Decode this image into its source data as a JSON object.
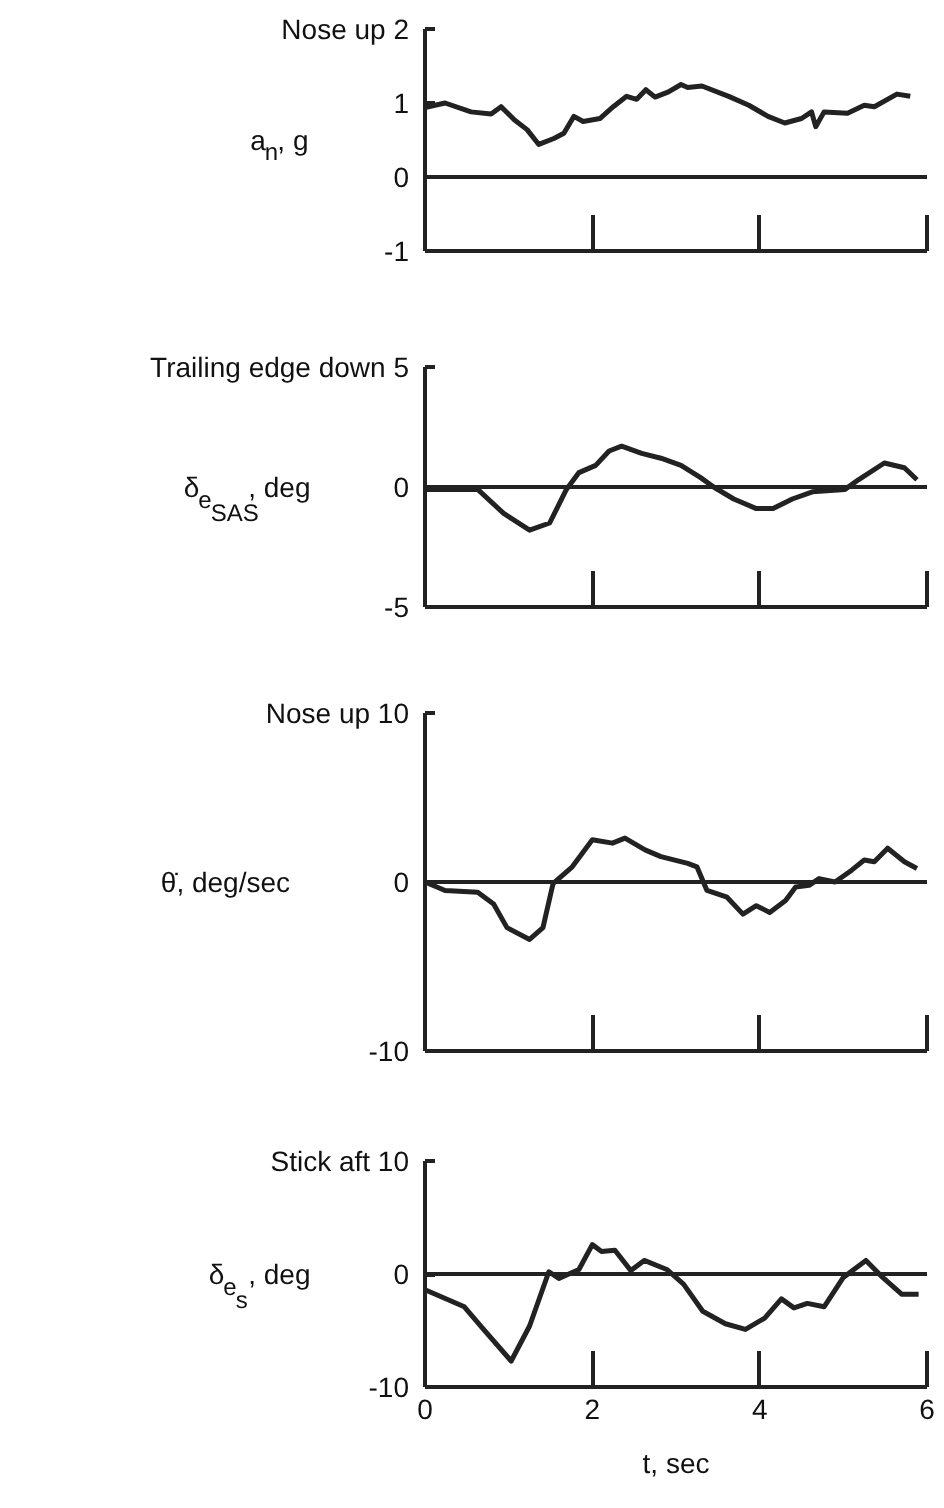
{
  "chart_data": [
    {
      "type": "line",
      "ylabel": "a$_{n}$, g",
      "x": [
        0,
        0.24,
        0.55,
        0.79,
        0.91,
        1.07,
        1.22,
        1.36,
        1.54,
        1.66,
        1.78,
        1.89,
        2.09,
        2.25,
        2.41,
        2.53,
        2.64,
        2.75,
        2.91,
        3.06,
        3.14,
        3.31,
        3.63,
        3.87,
        4.1,
        4.3,
        4.5,
        4.62,
        4.67,
        4.77,
        5.05,
        5.25,
        5.37,
        5.64,
        5.8
      ],
      "series": [
        {
          "color": "#222222",
          "values": [
            0.94,
            1.0,
            0.88,
            0.85,
            0.95,
            0.77,
            0.64,
            0.44,
            0.52,
            0.59,
            0.82,
            0.75,
            0.79,
            0.95,
            1.09,
            1.05,
            1.18,
            1.08,
            1.15,
            1.25,
            1.21,
            1.23,
            1.09,
            0.97,
            0.82,
            0.73,
            0.79,
            0.88,
            0.68,
            0.88,
            0.86,
            0.97,
            0.95,
            1.12,
            1.09
          ]
        }
      ],
      "xlim": [
        0,
        6
      ],
      "xticks": [
        0,
        2,
        4,
        6
      ],
      "ylim": [
        -1,
        2
      ],
      "yticks": [
        -1,
        0,
        1,
        {
          "value": 2,
          "label": "Nose up 2"
        }
      ],
      "tick_labels": "y",
      "ref_lines": [
        {
          "axis": "y",
          "value": 0
        }
      ]
    },
    {
      "type": "line",
      "ylabel": "δ$_{e}$$_{SAS}$, deg",
      "x": [
        0,
        0.63,
        0.94,
        1.25,
        1.49,
        1.69,
        1.84,
        2.04,
        2.2,
        2.35,
        2.59,
        2.82,
        3.06,
        3.29,
        3.45,
        3.69,
        3.96,
        4.16,
        4.39,
        4.63,
        5.02,
        5.18,
        5.49,
        5.73,
        5.88
      ],
      "series": [
        {
          "color": "#222222",
          "values": [
            -0.1,
            -0.1,
            -1.1,
            -1.8,
            -1.5,
            -0.1,
            0.6,
            0.9,
            1.5,
            1.7,
            1.4,
            1.2,
            0.9,
            0.4,
            0,
            -0.5,
            -0.9,
            -0.9,
            -0.5,
            -0.2,
            -0.1,
            0.3,
            1.0,
            0.8,
            0.3
          ]
        }
      ],
      "xlim": [
        0,
        6
      ],
      "xticks": [
        0,
        2,
        4,
        6
      ],
      "ylim": [
        -5,
        5
      ],
      "yticks": [
        -5,
        0,
        {
          "value": 5,
          "label": "Trailing edge down 5"
        }
      ],
      "tick_labels": "y",
      "ref_lines": [
        {
          "axis": "y",
          "value": 0
        }
      ]
    },
    {
      "type": "line",
      "ylabel": "θ̇, deg/sec",
      "x": [
        0,
        0.24,
        0.63,
        0.82,
        0.98,
        1.25,
        1.41,
        1.53,
        1.76,
        2.0,
        2.24,
        2.39,
        2.63,
        2.82,
        3.14,
        3.25,
        3.37,
        3.61,
        3.8,
        3.96,
        4.12,
        4.31,
        4.43,
        4.59,
        4.71,
        4.9,
        5.1,
        5.25,
        5.37,
        5.53,
        5.73,
        5.88
      ],
      "series": [
        {
          "color": "#222222",
          "values": [
            0,
            -0.5,
            -0.6,
            -1.3,
            -2.7,
            -3.4,
            -2.7,
            -0.1,
            0.9,
            2.5,
            2.3,
            2.6,
            1.9,
            1.5,
            1.1,
            0.9,
            -0.5,
            -0.9,
            -1.9,
            -1.4,
            -1.8,
            -1.1,
            -0.3,
            -0.2,
            0.2,
            0,
            0.7,
            1.3,
            1.2,
            2.0,
            1.2,
            0.8
          ]
        }
      ],
      "xlim": [
        0,
        6
      ],
      "xticks": [
        0,
        2,
        4,
        6
      ],
      "ylim": [
        -10,
        10
      ],
      "yticks": [
        -10,
        0,
        {
          "value": 10,
          "label": "Nose up 10"
        }
      ],
      "tick_labels": "y",
      "ref_lines": [
        {
          "axis": "y",
          "value": 0
        }
      ]
    },
    {
      "type": "line",
      "ylabel": "δ$_{e}$$_{s}$, deg",
      "xlabel": "t, sec",
      "x": [
        0,
        0.47,
        0.7,
        1.03,
        1.25,
        1.48,
        1.6,
        1.84,
        2.0,
        2.11,
        2.27,
        2.46,
        2.62,
        2.89,
        3.09,
        3.32,
        3.59,
        3.83,
        4.06,
        4.26,
        4.41,
        4.57,
        4.77,
        5.0,
        5.27,
        5.47,
        5.7,
        5.9
      ],
      "series": [
        {
          "color": "#222222",
          "values": [
            -1.4,
            -2.9,
            -4.9,
            -7.7,
            -4.6,
            0.2,
            -0.4,
            0.4,
            2.6,
            2.0,
            2.1,
            0.3,
            1.2,
            0.4,
            -0.9,
            -3.3,
            -4.4,
            -4.9,
            -3.9,
            -2.2,
            -3.0,
            -2.6,
            -2.9,
            -0.3,
            1.2,
            -0.3,
            -1.8,
            -1.8
          ]
        }
      ],
      "xlim": [
        0,
        6
      ],
      "xticks": [
        0,
        2,
        4,
        6
      ],
      "ylim": [
        -10,
        10
      ],
      "yticks": [
        -10,
        0,
        {
          "value": 10,
          "label": "Stick aft 10"
        }
      ],
      "ref_lines": [
        {
          "axis": "y",
          "value": 0
        }
      ]
    }
  ]
}
